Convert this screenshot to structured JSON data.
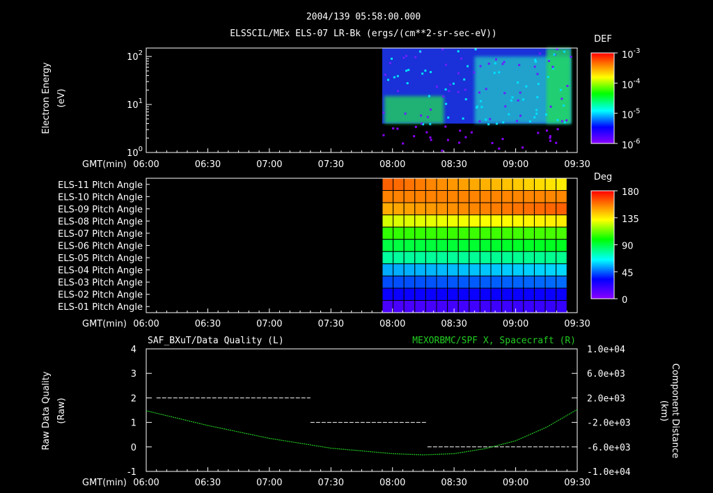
{
  "title": {
    "line1": "2004/139 05:58:00.000",
    "line2": "ELSSCIL/MEx ELS-07 LR-Bk  (ergs/(cm**2-sr-sec-eV))"
  },
  "colors": {
    "background": "#000000",
    "foreground": "#ffffff",
    "green_series": "#22cc22"
  },
  "time_axis": {
    "label": "GMT(min)",
    "ticks": [
      "06:00",
      "06:30",
      "07:00",
      "07:30",
      "08:00",
      "08:30",
      "09:00",
      "09:30"
    ],
    "range_min": [
      0,
      210
    ]
  },
  "chart_data": [
    {
      "type": "heatmap",
      "name": "spectrogram",
      "ylabel": "Electron Energy",
      "yunit": "(eV)",
      "yscale": "log",
      "ylim": [
        1,
        150
      ],
      "ytick_values": [
        1,
        10,
        100
      ],
      "ytick_labels": [
        [
          "10",
          "0"
        ],
        [
          "10",
          "1"
        ],
        [
          "10",
          "2"
        ]
      ],
      "data_start_min": 115,
      "data_end_min": 207,
      "colorbar": {
        "title": "DEF",
        "scale": "log",
        "range": [
          1e-06,
          0.001
        ],
        "tick_labels": [
          [
            "10",
            "-3"
          ],
          [
            "10",
            "-4"
          ],
          [
            "10",
            "-5"
          ],
          [
            "10",
            "-6"
          ]
        ]
      },
      "features": [
        {
          "t_min": [
            116,
            145
          ],
          "energy_eV": [
            4,
            15
          ],
          "level": "high"
        },
        {
          "t_min": [
            160,
            207
          ],
          "energy_eV": [
            4,
            100
          ],
          "level": "medium"
        },
        {
          "t_min": [
            195,
            207
          ],
          "energy_eV": [
            4,
            150
          ],
          "level": "high"
        }
      ]
    },
    {
      "type": "heatmap",
      "name": "pitch-angle",
      "rows": [
        "ELS-11 Pitch Angle",
        "ELS-10 Pitch Angle",
        "ELS-09 Pitch Angle",
        "ELS-08 Pitch Angle",
        "ELS-07 Pitch Angle",
        "ELS-06 Pitch Angle",
        "ELS-05 Pitch Angle",
        "ELS-04 Pitch Angle",
        "ELS-03 Pitch Angle",
        "ELS-02 Pitch Angle",
        "ELS-01 Pitch Angle"
      ],
      "data_start_min": 115,
      "data_end_min": 205,
      "n_columns": 17,
      "row_start_deg": [
        162,
        156,
        148,
        126,
        105,
        90,
        78,
        54,
        42,
        30,
        15
      ],
      "row_end_deg": [
        135,
        155,
        162,
        135,
        108,
        95,
        80,
        60,
        46,
        30,
        20
      ],
      "colorbar": {
        "title": "Deg",
        "range": [
          0,
          180
        ],
        "tick_labels": [
          "180",
          "135",
          "90",
          "45",
          "0"
        ]
      }
    },
    {
      "type": "line",
      "name": "data-quality-and-position",
      "left_title": "SAF_BXuT/Data Quality (L)",
      "right_title": "MEXORBMC/SPF X, Spacecraft (R)",
      "ylabel_left": "Raw Data Quality",
      "yunit_left": "(Raw)",
      "ylabel_right": "Component Distance",
      "yunit_right": "(km)",
      "ylim_left": [
        -1,
        4
      ],
      "yticks_left": [
        "4",
        "3",
        "2",
        "1",
        "0",
        "-1"
      ],
      "ylim_right": [
        -10000,
        10000
      ],
      "yticks_right": [
        "1.0e+04",
        "6.0e+03",
        "2.0e+03",
        "-2.0e+03",
        "-6.0e+03",
        "-1.0e+04"
      ],
      "series": [
        {
          "axis": "left",
          "segments": [
            {
              "t_min": [
                5,
                80
              ],
              "value": 2
            },
            {
              "t_min": [
                80,
                137
              ],
              "value": 1
            },
            {
              "t_min": [
                137,
                206
              ],
              "value": 0
            }
          ]
        },
        {
          "axis": "right",
          "t_min": [
            0,
            30,
            60,
            90,
            120,
            135,
            150,
            165,
            180,
            195,
            210
          ],
          "values": [
            -100,
            -2500,
            -4600,
            -6200,
            -7100,
            -7300,
            -7100,
            -6300,
            -5000,
            -2800,
            100
          ]
        }
      ]
    }
  ]
}
